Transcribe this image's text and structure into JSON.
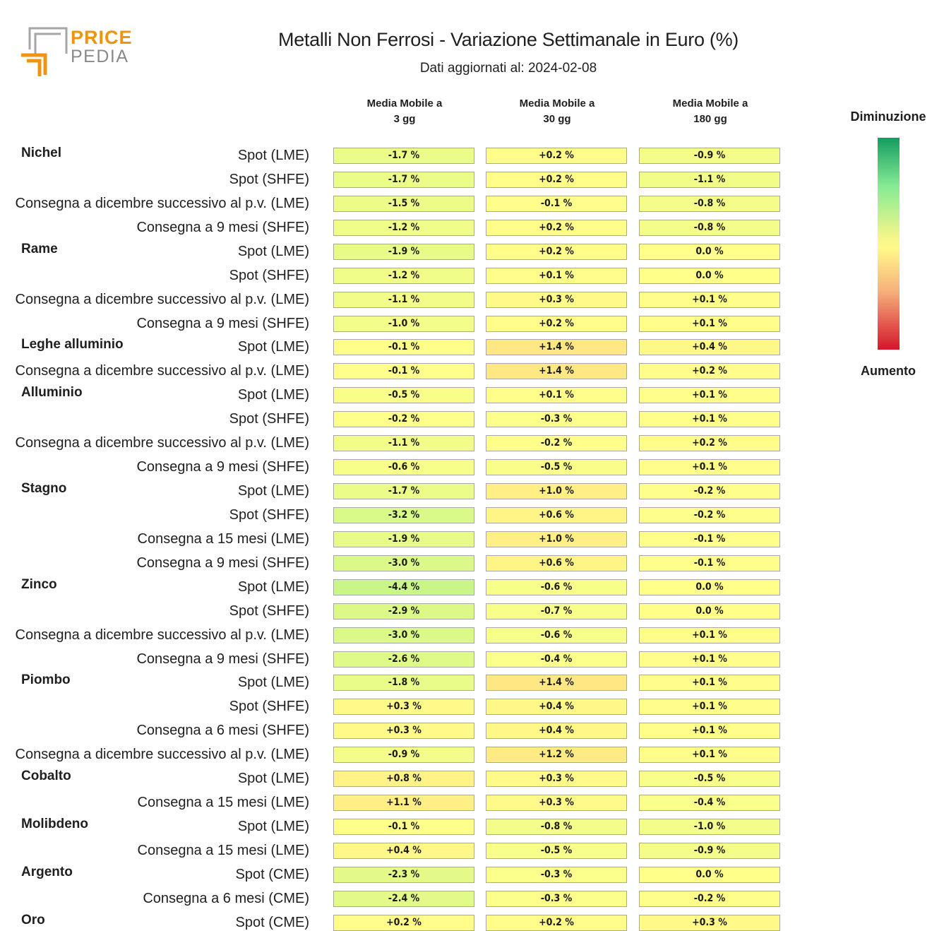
{
  "logo": {
    "line1": "PRICE",
    "line2": "PEDIA"
  },
  "title": "Metalli Non Ferrosi - Variazione Settimanale in Euro (%)",
  "subtitle": "Dati aggiornati al: 2024-02-08",
  "legend": {
    "top": "Diminuzione",
    "bottom": "Aumento"
  },
  "chart_data": {
    "type": "table",
    "columns": [
      "Media Mobile a\n3 gg",
      "Media Mobile a\n30 gg",
      "Media Mobile a\n180 gg"
    ],
    "groups": [
      {
        "name": "Nichel",
        "rows": [
          {
            "label": "Spot (LME)",
            "values": [
              "-1.7 %",
              "+0.2 %",
              "-0.9 %"
            ]
          },
          {
            "label": "Spot (SHFE)",
            "values": [
              "-1.7 %",
              "+0.2 %",
              "-1.1 %"
            ]
          },
          {
            "label": "Consegna a dicembre successivo al p.v. (LME)",
            "values": [
              "-1.5 %",
              "-0.1 %",
              "-0.8 %"
            ]
          },
          {
            "label": "Consegna a 9 mesi (SHFE)",
            "values": [
              "-1.2 %",
              "+0.2 %",
              "-0.8 %"
            ]
          }
        ]
      },
      {
        "name": "Rame",
        "rows": [
          {
            "label": "Spot (LME)",
            "values": [
              "-1.9 %",
              "+0.2 %",
              "0.0 %"
            ]
          },
          {
            "label": "Spot (SHFE)",
            "values": [
              "-1.2 %",
              "+0.1 %",
              "0.0 %"
            ]
          },
          {
            "label": "Consegna a dicembre successivo al p.v. (LME)",
            "values": [
              "-1.1 %",
              "+0.3 %",
              "+0.1 %"
            ]
          },
          {
            "label": "Consegna a 9 mesi (SHFE)",
            "values": [
              "-1.0 %",
              "+0.2 %",
              "+0.1 %"
            ]
          }
        ]
      },
      {
        "name": "Leghe alluminio",
        "rows": [
          {
            "label": "Spot (LME)",
            "values": [
              "-0.1 %",
              "+1.4 %",
              "+0.4 %"
            ]
          },
          {
            "label": "Consegna a dicembre successivo al p.v. (LME)",
            "values": [
              "-0.1 %",
              "+1.4 %",
              "+0.2 %"
            ]
          }
        ]
      },
      {
        "name": "Alluminio",
        "rows": [
          {
            "label": "Spot (LME)",
            "values": [
              "-0.5 %",
              "+0.1 %",
              "+0.1 %"
            ]
          },
          {
            "label": "Spot (SHFE)",
            "values": [
              "-0.2 %",
              "-0.3 %",
              "+0.1 %"
            ]
          },
          {
            "label": "Consegna a dicembre successivo al p.v. (LME)",
            "values": [
              "-1.1 %",
              "-0.2 %",
              "+0.2 %"
            ]
          },
          {
            "label": "Consegna a 9 mesi (SHFE)",
            "values": [
              "-0.6 %",
              "-0.5 %",
              "+0.1 %"
            ]
          }
        ]
      },
      {
        "name": "Stagno",
        "rows": [
          {
            "label": "Spot (LME)",
            "values": [
              "-1.7 %",
              "+1.0 %",
              "-0.2 %"
            ]
          },
          {
            "label": "Spot (SHFE)",
            "values": [
              "-3.2 %",
              "+0.6 %",
              "-0.2 %"
            ]
          },
          {
            "label": "Consegna a 15 mesi (LME)",
            "values": [
              "-1.9 %",
              "+1.0 %",
              "-0.1 %"
            ]
          },
          {
            "label": "Consegna a 9 mesi (SHFE)",
            "values": [
              "-3.0 %",
              "+0.6 %",
              "-0.1 %"
            ]
          }
        ]
      },
      {
        "name": "Zinco",
        "rows": [
          {
            "label": "Spot (LME)",
            "values": [
              "-4.4 %",
              "-0.6 %",
              "0.0 %"
            ]
          },
          {
            "label": "Spot (SHFE)",
            "values": [
              "-2.9 %",
              "-0.7 %",
              "0.0 %"
            ]
          },
          {
            "label": "Consegna a dicembre successivo al p.v. (LME)",
            "values": [
              "-3.0 %",
              "-0.6 %",
              "+0.1 %"
            ]
          },
          {
            "label": "Consegna a 9 mesi (SHFE)",
            "values": [
              "-2.6 %",
              "-0.4 %",
              "+0.1 %"
            ]
          }
        ]
      },
      {
        "name": "Piombo",
        "rows": [
          {
            "label": "Spot (LME)",
            "values": [
              "-1.8 %",
              "+1.4 %",
              "+0.1 %"
            ]
          },
          {
            "label": "Spot (SHFE)",
            "values": [
              "+0.3 %",
              "+0.4 %",
              "+0.1 %"
            ]
          },
          {
            "label": "Consegna a 6 mesi (SHFE)",
            "values": [
              "+0.3 %",
              "+0.4 %",
              "+0.1 %"
            ]
          },
          {
            "label": "Consegna a dicembre successivo al p.v. (LME)",
            "values": [
              "-0.9 %",
              "+1.2 %",
              "+0.1 %"
            ]
          }
        ]
      },
      {
        "name": "Cobalto",
        "rows": [
          {
            "label": "Spot (LME)",
            "values": [
              "+0.8 %",
              "+0.3 %",
              "-0.5 %"
            ]
          },
          {
            "label": "Consegna a 15 mesi (LME)",
            "values": [
              "+1.1 %",
              "+0.3 %",
              "-0.4 %"
            ]
          }
        ]
      },
      {
        "name": "Molibdeno",
        "rows": [
          {
            "label": "Spot (LME)",
            "values": [
              "-0.1 %",
              "-0.8 %",
              "-1.0 %"
            ]
          },
          {
            "label": "Consegna a 15 mesi (LME)",
            "values": [
              "+0.4 %",
              "-0.5 %",
              "-0.9 %"
            ]
          }
        ]
      },
      {
        "name": "Argento",
        "rows": [
          {
            "label": "Spot (CME)",
            "values": [
              "-2.3 %",
              "-0.3 %",
              "0.0 %"
            ]
          },
          {
            "label": "Consegna a 6 mesi (CME)",
            "values": [
              "-2.4 %",
              "-0.3 %",
              "-0.2 %"
            ]
          }
        ]
      },
      {
        "name": "Oro",
        "rows": [
          {
            "label": "Spot (CME)",
            "values": [
              "+0.2 %",
              "+0.2 %",
              "+0.3 %"
            ]
          }
        ]
      }
    ]
  }
}
